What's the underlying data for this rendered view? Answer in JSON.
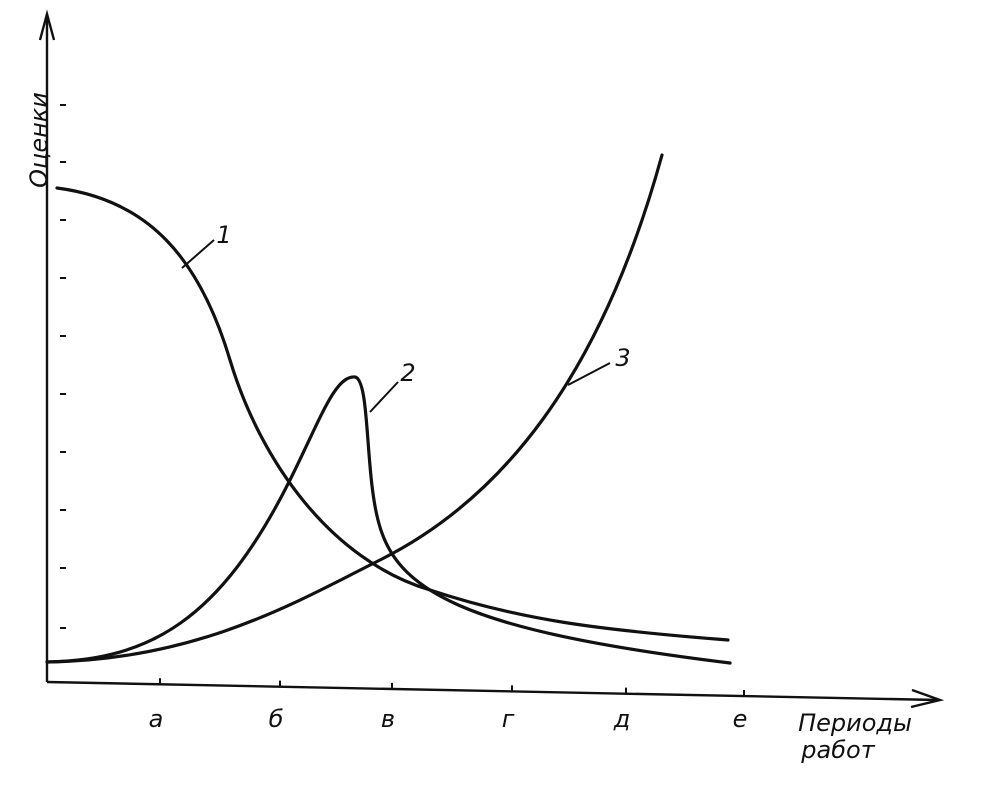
{
  "axes": {
    "y_label": "Оценки",
    "x_label": [
      "Периоды",
      "работ"
    ]
  },
  "x_ticks": [
    "а",
    "б",
    "в",
    "г",
    "д",
    "е"
  ],
  "curves": [
    "1",
    "2",
    "3"
  ]
}
